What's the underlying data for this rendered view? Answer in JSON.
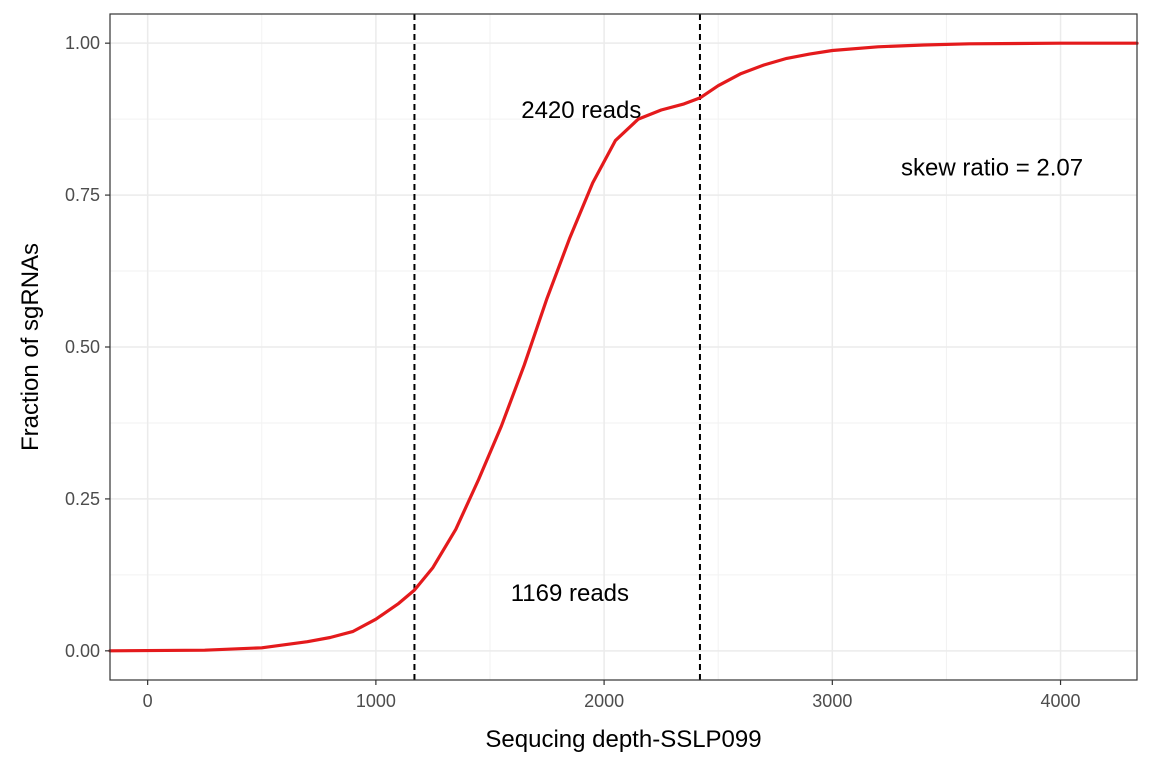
{
  "chart_data": {
    "type": "line",
    "xlabel": "Sequcing depth-SSLP099",
    "ylabel": "Fraction of sgRNAs",
    "xlim": [
      -165,
      4335
    ],
    "ylim": [
      -0.048,
      1.048
    ],
    "x_ticks": [
      0,
      1000,
      2000,
      3000,
      4000
    ],
    "x_tick_labels": [
      "0",
      "1000",
      "2000",
      "3000",
      "4000"
    ],
    "y_ticks": [
      0,
      0.25,
      0.5,
      0.75,
      1.0
    ],
    "y_tick_labels": [
      "0.00",
      "0.25",
      "0.50",
      "0.75",
      "1.00"
    ],
    "grid": true,
    "series": [
      {
        "color": "#e41a1c",
        "x": [
          -165,
          250,
          500,
          700,
          800,
          900,
          1000,
          1100,
          1169,
          1250,
          1350,
          1450,
          1550,
          1650,
          1750,
          1850,
          1950,
          2050,
          2150,
          2250,
          2350,
          2420,
          2500,
          2600,
          2700,
          2800,
          2900,
          3000,
          3200,
          3400,
          3600,
          4000,
          4335
        ],
        "y": [
          0,
          0.001,
          0.005,
          0.015,
          0.022,
          0.032,
          0.052,
          0.078,
          0.1,
          0.137,
          0.2,
          0.282,
          0.37,
          0.47,
          0.58,
          0.68,
          0.77,
          0.84,
          0.875,
          0.89,
          0.9,
          0.91,
          0.93,
          0.95,
          0.964,
          0.975,
          0.982,
          0.988,
          0.994,
          0.997,
          0.999,
          1.0,
          1.0
        ]
      }
    ],
    "vlines": [
      1169,
      2420
    ],
    "annotations": [
      {
        "text": "2420 reads",
        "x": 1900,
        "y": 0.89
      },
      {
        "text": "1169 reads",
        "x": 1850,
        "y": 0.095
      },
      {
        "text": "skew ratio = 2.07",
        "x": 3700,
        "y": 0.795
      }
    ]
  }
}
